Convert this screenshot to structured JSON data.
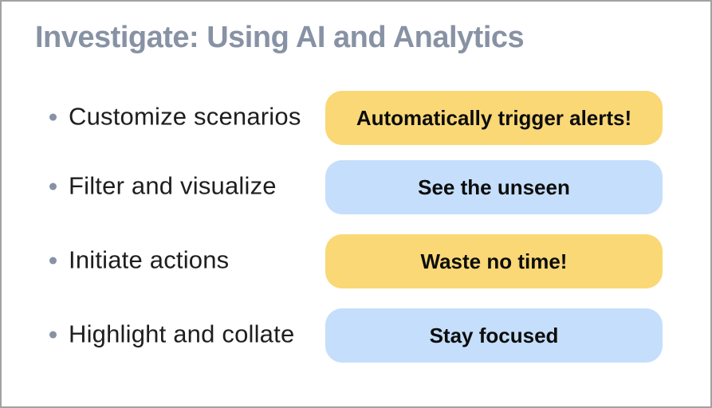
{
  "title": "Investigate: Using AI and Analytics",
  "rows": [
    {
      "bullet": "Customize scenarios",
      "pill": "Automatically trigger alerts!",
      "pill_color": "#FAD876"
    },
    {
      "bullet": "Filter and visualize",
      "pill": "See the unseen",
      "pill_color": "#C5DEFB"
    },
    {
      "bullet": "Initiate actions",
      "pill": "Waste no time!",
      "pill_color": "#FAD876"
    },
    {
      "bullet": "Highlight and collate",
      "pill": "Stay focused",
      "pill_color": "#C5DEFB"
    }
  ],
  "colors": {
    "title_text": "#8792A4",
    "body_text": "#1E1E1E",
    "pill_text": "#0D0D0D",
    "pill_yellow": "#FAD876",
    "pill_blue": "#C5DEFB",
    "slide_border": "#A2A2A2",
    "background": "#FFFFFF"
  }
}
